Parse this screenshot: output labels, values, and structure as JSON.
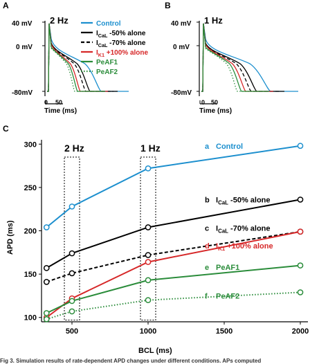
{
  "panels": {
    "a": {
      "letter": "A",
      "freq": "2 Hz"
    },
    "b": {
      "letter": "B",
      "freq": "1 Hz"
    },
    "c": {
      "letter": "C"
    }
  },
  "traces_axis": {
    "v_top": "40 mV",
    "v_zero": "0 mV",
    "v_bottom": "-80mV",
    "t0": "0",
    "t50": "50",
    "time_label": "Time  (ms)"
  },
  "legend": {
    "items": [
      {
        "label": "Control",
        "color": "#1c8fce",
        "dash": "solid"
      },
      {
        "base": "I",
        "sub": "CaL",
        "rest": " -50% alone",
        "color": "#000000",
        "dash": "solid"
      },
      {
        "base": "I",
        "sub": "CaL",
        "rest": " -70% alone",
        "color": "#000000",
        "dash": "dashed"
      },
      {
        "base": "I",
        "sub": "K1",
        "rest": " +100% alone",
        "color": "#d62728",
        "dash": "solid"
      },
      {
        "label": "PeAF1",
        "color": "#2a8c3a",
        "dash": "solid"
      },
      {
        "label": "PeAF2",
        "color": "#2a8c3a",
        "dash": "dotted"
      }
    ]
  },
  "chart_data": {
    "type": "line",
    "xlabel": "BCL (ms)",
    "ylabel": "APD (ms)",
    "xlim": [
      300,
      2050
    ],
    "ylim": [
      95,
      305
    ],
    "x_ticks": [
      "500",
      "1000",
      "1500",
      "2000"
    ],
    "y_ticks": [
      "100",
      "150",
      "200",
      "250",
      "300"
    ],
    "x": [
      333,
      500,
      1000,
      2000
    ],
    "highlight_boxes": [
      {
        "label": "2 Hz",
        "x": 500
      },
      {
        "label": "1 Hz",
        "x": 1000
      }
    ],
    "series": [
      {
        "letter": "a",
        "label": "Control",
        "color": "#1c8fce",
        "dash": "solid",
        "values": [
          204,
          228,
          272,
          298
        ]
      },
      {
        "letter": "b",
        "base": "I",
        "sub": "CaL",
        "rest": " -50% alone",
        "color": "#000000",
        "dash": "solid",
        "values": [
          157,
          174,
          204,
          236
        ]
      },
      {
        "letter": "c",
        "base": "I",
        "sub": "CaL",
        "rest": " -70% alone",
        "color": "#000000",
        "dash": "dashed",
        "values": [
          141,
          151,
          172,
          199
        ]
      },
      {
        "letter": "d",
        "base": "I",
        "sub": "K1",
        "rest": " +100% alone",
        "color": "#d62728",
        "dash": "solid",
        "values": [
          100,
          122,
          164,
          199
        ]
      },
      {
        "letter": "e",
        "label": "PeAF1",
        "color": "#2a8c3a",
        "dash": "solid",
        "values": [
          105,
          119,
          143,
          160
        ]
      },
      {
        "letter": "f",
        "label": "PeAF2",
        "color": "#2a8c3a",
        "dash": "dotted",
        "values": [
          98,
          107,
          120,
          129
        ]
      }
    ]
  },
  "caption": "Fig 3. Simulation results of rate-dependent APD changes under different conditions. APs computed"
}
